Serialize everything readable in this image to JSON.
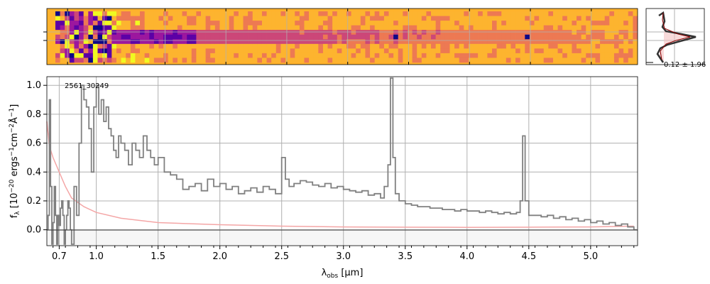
{
  "chart_data": [
    {
      "type": "heatmap",
      "panel": "2d-spectrum",
      "colormap": "plasma",
      "background_color": "#ffb22c",
      "grid": true,
      "trace_rows": 1,
      "emission_features_um": [
        3.38,
        4.45
      ]
    },
    {
      "type": "line",
      "panel": "profile",
      "annotation": "0.12 ± 1.96",
      "profile_color": "#333333",
      "model_fill": "#f4c2c2",
      "model_line": "#8b0000"
    },
    {
      "type": "line",
      "panel": "1d-spectrum",
      "annotation": "2561_30249",
      "ylabel": "f_λ [10^-20 ergs^-1cm^-2Å^-1]",
      "xlabel": "λ_obs [μm]",
      "xlabel_main": "λ",
      "xlabel_sub": "obs",
      "xlabel_unit": " [μm]",
      "ylabel_main": "f",
      "ylabel_sub": "λ",
      "ylabel_unit_a": " [10",
      "ylabel_exp_a": "−20",
      "ylabel_unit_b": " ergs",
      "ylabel_exp_b": "−1",
      "ylabel_unit_c": "cm",
      "ylabel_exp_c": "−2",
      "ylabel_unit_d": "Å",
      "ylabel_exp_d": "−1",
      "ylabel_unit_e": "]",
      "x_ticks": [
        0.7,
        1.0,
        1.5,
        2.0,
        2.5,
        3.0,
        3.5,
        4.0,
        4.5,
        5.0
      ],
      "x_tick_labels": [
        "0.7",
        "1.0",
        "1.5",
        "2.0",
        "2.5",
        "3.0",
        "3.5",
        "4.0",
        "4.5",
        "5.0"
      ],
      "y_ticks": [
        0.0,
        0.2,
        0.4,
        0.6,
        0.8,
        1.0
      ],
      "y_tick_labels": [
        "0.0",
        "0.2",
        "0.4",
        "0.6",
        "0.8",
        "1.0"
      ],
      "ylim": [
        -0.11,
        1.06
      ],
      "xlim": [
        0.6,
        5.38
      ],
      "grid": true,
      "series": [
        {
          "role": "flux",
          "color": "#808080",
          "x": [
            0.6,
            0.61,
            0.62,
            0.63,
            0.64,
            0.65,
            0.66,
            0.67,
            0.68,
            0.69,
            0.7,
            0.71,
            0.72,
            0.73,
            0.74,
            0.75,
            0.76,
            0.77,
            0.78,
            0.79,
            0.8,
            0.82,
            0.84,
            0.86,
            0.88,
            0.9,
            0.92,
            0.94,
            0.96,
            0.98,
            1.0,
            1.02,
            1.04,
            1.06,
            1.08,
            1.1,
            1.12,
            1.14,
            1.16,
            1.18,
            1.2,
            1.23,
            1.26,
            1.29,
            1.32,
            1.35,
            1.38,
            1.41,
            1.44,
            1.47,
            1.5,
            1.55,
            1.6,
            1.65,
            1.7,
            1.75,
            1.8,
            1.85,
            1.9,
            1.95,
            2.0,
            2.05,
            2.1,
            2.15,
            2.2,
            2.25,
            2.3,
            2.35,
            2.4,
            2.45,
            2.5,
            2.53,
            2.56,
            2.6,
            2.65,
            2.7,
            2.75,
            2.8,
            2.85,
            2.9,
            2.95,
            3.0,
            3.05,
            3.1,
            3.15,
            3.2,
            3.25,
            3.3,
            3.33,
            3.36,
            3.38,
            3.4,
            3.42,
            3.45,
            3.5,
            3.55,
            3.6,
            3.65,
            3.7,
            3.75,
            3.8,
            3.85,
            3.9,
            3.95,
            4.0,
            4.05,
            4.1,
            4.15,
            4.2,
            4.25,
            4.3,
            4.35,
            4.4,
            4.43,
            4.45,
            4.47,
            4.5,
            4.55,
            4.6,
            4.65,
            4.7,
            4.75,
            4.8,
            4.85,
            4.9,
            4.95,
            5.0,
            5.05,
            5.1,
            5.15,
            5.2,
            5.25,
            5.3,
            5.35
          ],
          "y": [
            0.0,
            0.1,
            0.9,
            0.3,
            -0.1,
            0.05,
            0.3,
            0.1,
            -0.1,
            0.1,
            0.03,
            0.15,
            0.2,
            0.1,
            -0.1,
            0.0,
            0.1,
            0.2,
            0.15,
            0.0,
            -0.1,
            0.3,
            0.1,
            0.6,
            1.0,
            0.9,
            0.85,
            0.7,
            0.4,
            0.85,
            1.0,
            0.8,
            0.9,
            0.75,
            0.85,
            0.7,
            0.65,
            0.55,
            0.5,
            0.65,
            0.6,
            0.55,
            0.45,
            0.6,
            0.55,
            0.5,
            0.65,
            0.55,
            0.5,
            0.45,
            0.5,
            0.4,
            0.38,
            0.35,
            0.28,
            0.3,
            0.32,
            0.27,
            0.35,
            0.3,
            0.32,
            0.28,
            0.3,
            0.25,
            0.27,
            0.29,
            0.26,
            0.3,
            0.28,
            0.25,
            0.5,
            0.35,
            0.3,
            0.32,
            0.34,
            0.33,
            0.31,
            0.3,
            0.32,
            0.29,
            0.3,
            0.28,
            0.27,
            0.26,
            0.27,
            0.24,
            0.25,
            0.22,
            0.3,
            0.45,
            1.05,
            0.5,
            0.25,
            0.2,
            0.18,
            0.17,
            0.16,
            0.16,
            0.15,
            0.15,
            0.14,
            0.14,
            0.13,
            0.14,
            0.13,
            0.13,
            0.12,
            0.13,
            0.12,
            0.11,
            0.12,
            0.11,
            0.12,
            0.2,
            0.65,
            0.2,
            0.1,
            0.1,
            0.09,
            0.1,
            0.08,
            0.09,
            0.07,
            0.08,
            0.06,
            0.07,
            0.05,
            0.06,
            0.04,
            0.05,
            0.03,
            0.04,
            0.02,
            0.0
          ]
        },
        {
          "role": "error",
          "color": "#f4a6a6",
          "x": [
            0.6,
            0.62,
            0.65,
            0.7,
            0.75,
            0.8,
            0.85,
            0.9,
            1.0,
            1.2,
            1.5,
            2.0,
            2.5,
            3.0,
            3.5,
            4.0,
            4.5,
            5.0,
            5.35
          ],
          "y": [
            0.75,
            0.58,
            0.5,
            0.4,
            0.3,
            0.22,
            0.19,
            0.16,
            0.12,
            0.08,
            0.05,
            0.035,
            0.025,
            0.02,
            0.018,
            0.017,
            0.018,
            0.02,
            0.025
          ]
        }
      ]
    }
  ]
}
